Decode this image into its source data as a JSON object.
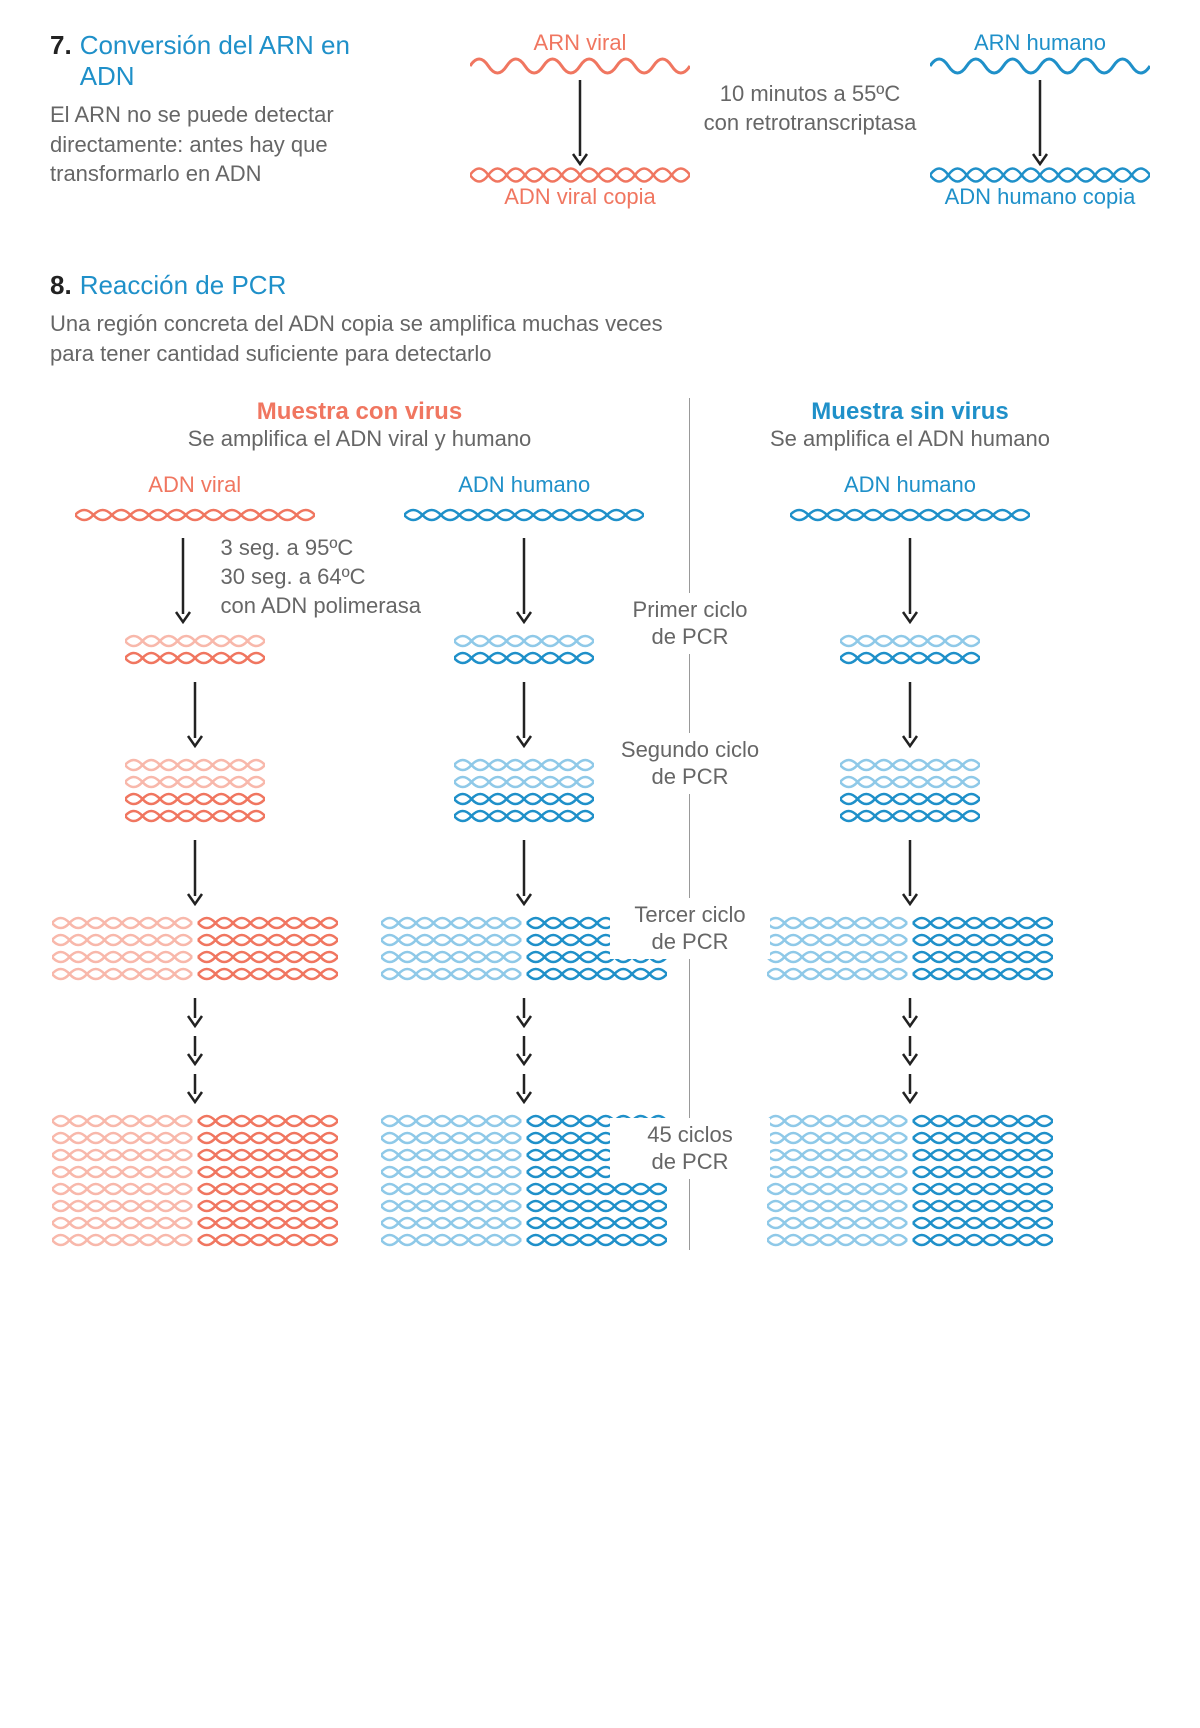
{
  "colors": {
    "coral": "#f07660",
    "coral_light": "#f8b8ab",
    "blue": "#1f90c9",
    "blue_light": "#8fc9e8",
    "gray_text": "#666666",
    "black": "#222222",
    "divider": "#999999"
  },
  "fonts": {
    "body": 22,
    "heading": 26,
    "bold": 24
  },
  "s7": {
    "num": "7.",
    "title": "Conversión del ARN en ADN",
    "desc": "El ARN no se puede detectar directamente: antes hay que transformarlo en ADN",
    "arn_viral": "ARN viral",
    "arn_humano": "ARN humano",
    "note_l1": "10 minutos a 55ºC",
    "note_l2": "con retrotranscriptasa",
    "adn_viral_copia": "ADN viral copia",
    "adn_humano_copia": "ADN humano copia"
  },
  "s8": {
    "num": "8.",
    "title": "Reacción de PCR",
    "desc": "Una región concreta del ADN copia se amplifica muchas veces para tener cantidad suficiente para detectarlo",
    "with_virus": "Muestra con virus",
    "with_virus_sub": "Se amplifica el ADN viral y humano",
    "without_virus": "Muestra sin virus",
    "without_virus_sub": "Se amplifica el ADN humano",
    "adn_viral": "ADN viral",
    "adn_humano": "ADN humano",
    "step_l1": "3 seg. a 95ºC",
    "step_l2": "30 seg. a 64ºC",
    "step_l3": "con ADN polimerasa",
    "cycle1_l1": "Primer ciclo",
    "cycle1_l2": "de PCR",
    "cycle2_l1": "Segundo ciclo",
    "cycle2_l2": "de PCR",
    "cycle3_l1": "Tercer ciclo",
    "cycle3_l2": "de PCR",
    "cycle45_l1": "45 ciclos",
    "cycle45_l2": "de PCR",
    "amplification_rows": [
      1,
      2,
      4,
      8,
      16
    ],
    "strand_segment_w": 140,
    "strand_h": 14,
    "arrow_h": 70,
    "final_cols": 2
  }
}
